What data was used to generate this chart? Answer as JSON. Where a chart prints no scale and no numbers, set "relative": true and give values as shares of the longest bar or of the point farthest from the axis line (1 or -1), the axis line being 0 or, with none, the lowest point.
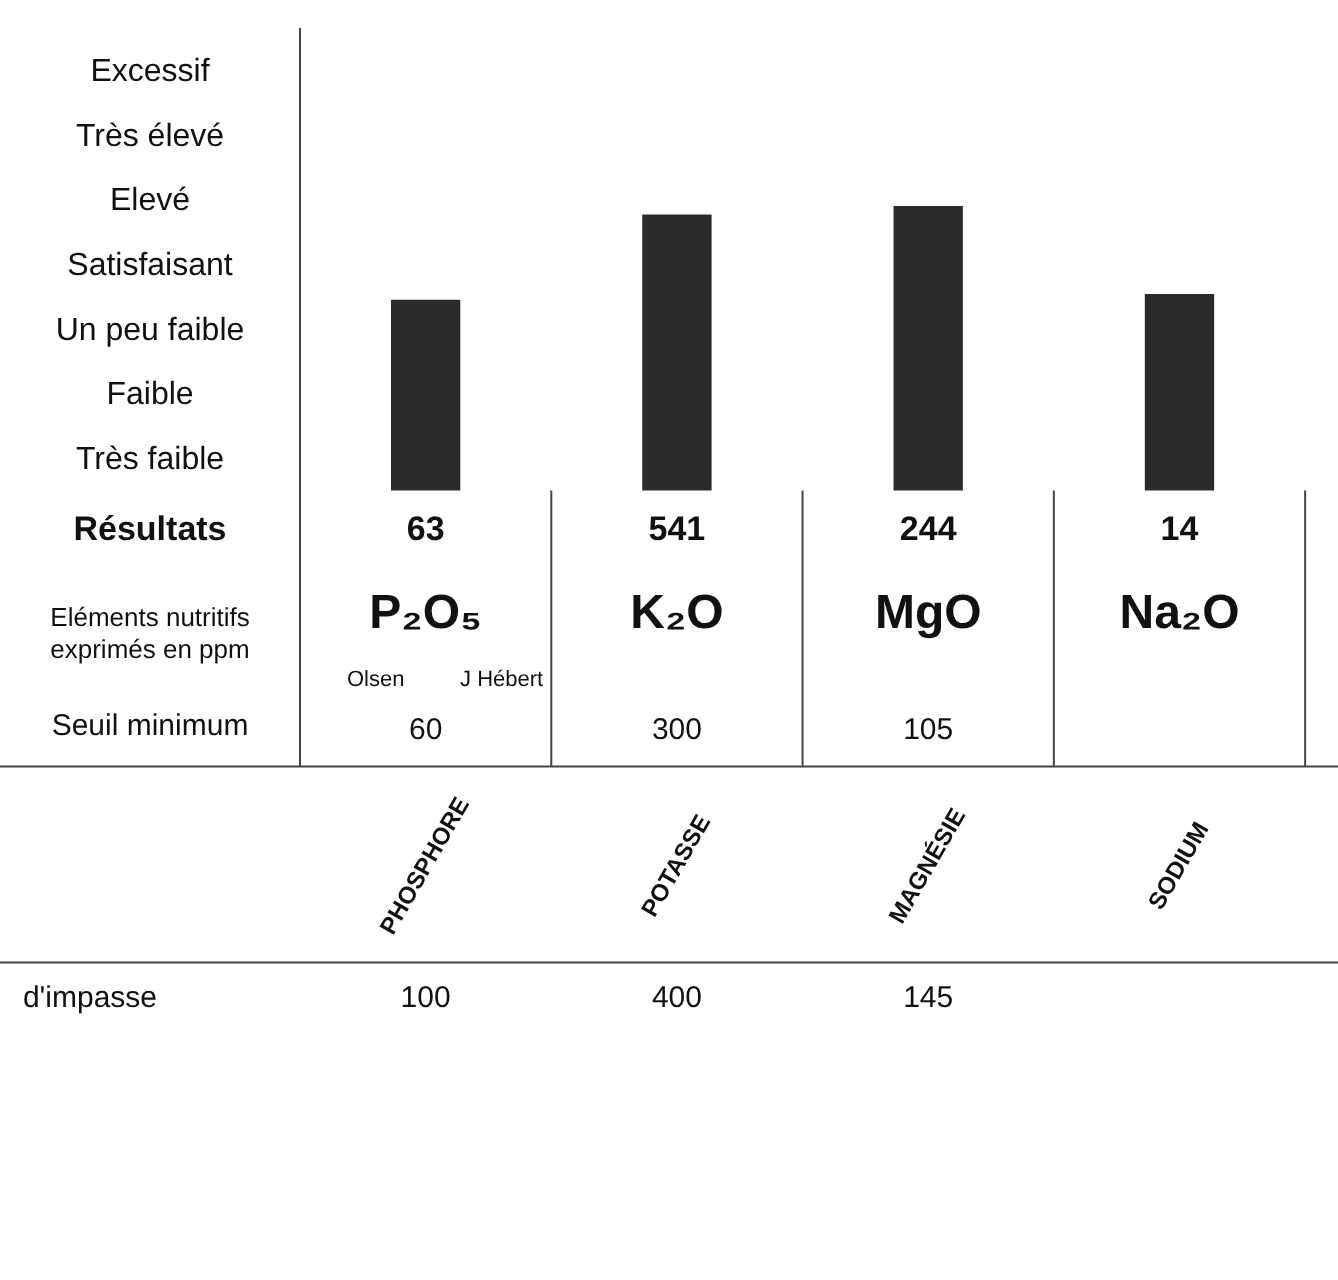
{
  "chart_data": {
    "type": "bar",
    "categories": [
      "P₂O₅",
      "K₂O",
      "MgO",
      "Na₂O"
    ],
    "values": [
      0.67,
      0.97,
      1,
      0.69
    ],
    "color": "#2b2b2b",
    "relative": true,
    "grid": false,
    "annotations": [
      "Résultats",
      "63",
      "541",
      "244",
      "14",
      "Eléments nutritifs exprimés en ppm",
      "Olsen",
      "J Hébert",
      "Seuil minimum",
      "60",
      "300",
      "105",
      "PHOSPHORE",
      "POTASSE",
      "MAGNÉSIE",
      "SODIUM",
      "d'impasse",
      "100",
      "400",
      "145",
      "Excessif",
      "Très élevé",
      "Elevé",
      "Satisfaisant",
      "Un peu faible",
      "Faible",
      "Très faible"
    ]
  }
}
